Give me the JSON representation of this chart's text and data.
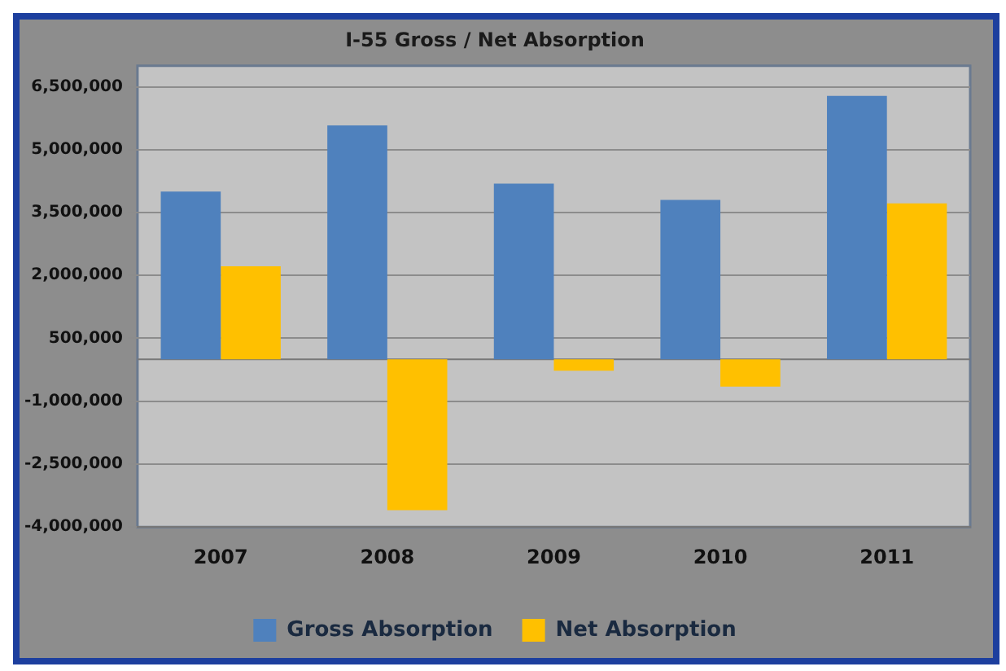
{
  "chart_data": {
    "type": "bar",
    "title": "I-55 Gross / Net Absorption",
    "categories": [
      "2007",
      "2008",
      "2009",
      "2010",
      "2011"
    ],
    "series": [
      {
        "name": "Gross Absorption",
        "color": "#4f81bd",
        "values": [
          4000000,
          5580000,
          4190000,
          3800000,
          6280000
        ]
      },
      {
        "name": "Net Absorption",
        "color": "#ffc000",
        "values": [
          2220000,
          -3600000,
          -270000,
          -650000,
          3720000
        ]
      }
    ],
    "ylim": [
      -4000000,
      7000000
    ],
    "yticks": [
      {
        "value": -4000000,
        "label": "-4,000,000"
      },
      {
        "value": -2500000,
        "label": "-2,500,000"
      },
      {
        "value": -1000000,
        "label": "-1,000,000"
      },
      {
        "value": 500000,
        "label": "500,000"
      },
      {
        "value": 2000000,
        "label": "2,000,000"
      },
      {
        "value": 3500000,
        "label": "3,500,000"
      },
      {
        "value": 5000000,
        "label": "5,000,000"
      },
      {
        "value": 6500000,
        "label": "6,500,000"
      }
    ],
    "grid": "y",
    "legend": "bottom"
  }
}
